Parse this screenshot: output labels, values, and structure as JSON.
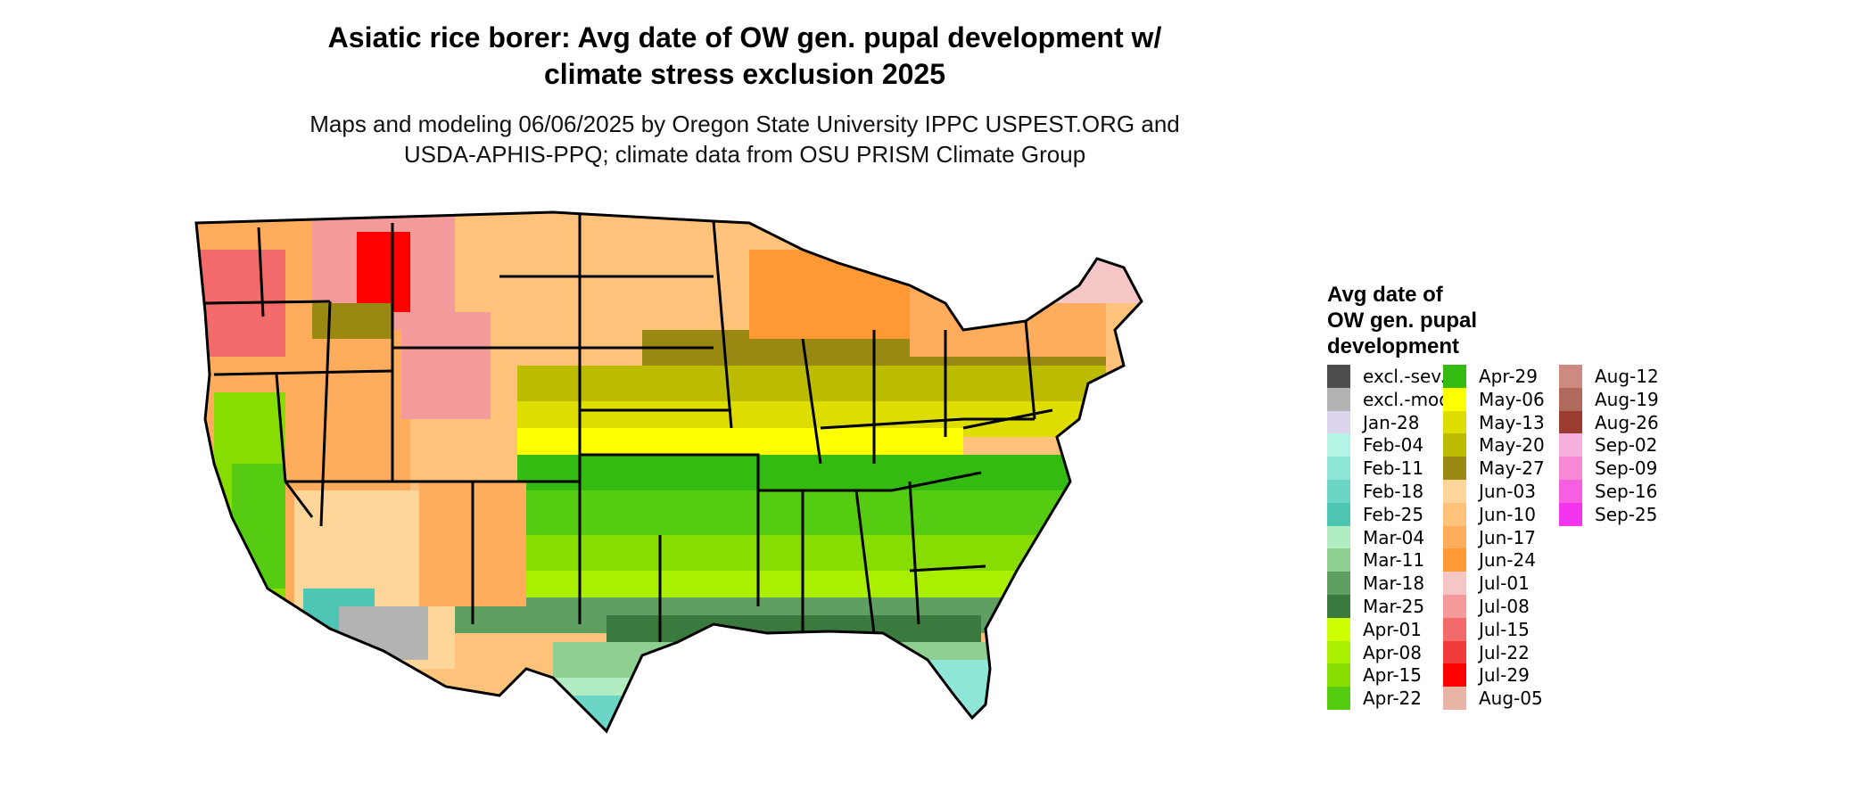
{
  "title_line1": "Asiatic rice borer: Avg date of OW gen. pupal development w/",
  "title_line2": "climate stress exclusion 2025",
  "subtitle_line1": "Maps and modeling 06/06/2025 by Oregon State University IPPC USPEST.ORG and",
  "subtitle_line2": "USDA-APHIS-PPQ; climate data from OSU PRISM Climate Group",
  "legend": {
    "title_lines": [
      "Avg date of",
      "OW gen. pupal",
      "development"
    ],
    "items": [
      {
        "label": "excl.-sev.",
        "color": "#4d4d4d"
      },
      {
        "label": "excl.-mod.",
        "color": "#b3b3b3"
      },
      {
        "label": "Jan-28",
        "color": "#ddd5ee"
      },
      {
        "label": "Feb-04",
        "color": "#b3f4e4"
      },
      {
        "label": "Feb-11",
        "color": "#8fe6d6"
      },
      {
        "label": "Feb-18",
        "color": "#6cd6c6"
      },
      {
        "label": "Feb-25",
        "color": "#4dc7b4"
      },
      {
        "label": "Mar-04",
        "color": "#b1edc0"
      },
      {
        "label": "Mar-11",
        "color": "#8fcf91"
      },
      {
        "label": "Mar-18",
        "color": "#5f9f62"
      },
      {
        "label": "Mar-25",
        "color": "#3b7a3f"
      },
      {
        "label": "Apr-01",
        "color": "#ccff00"
      },
      {
        "label": "Apr-08",
        "color": "#aaee00"
      },
      {
        "label": "Apr-15",
        "color": "#88dd00"
      },
      {
        "label": "Apr-22",
        "color": "#55cc11"
      },
      {
        "label": "Apr-29",
        "color": "#33bb11"
      },
      {
        "label": "May-06",
        "color": "#ffff00"
      },
      {
        "label": "May-13",
        "color": "#dddd00"
      },
      {
        "label": "May-20",
        "color": "#bbbb00"
      },
      {
        "label": "May-27",
        "color": "#998811"
      },
      {
        "label": "Jun-03",
        "color": "#ffd699"
      },
      {
        "label": "Jun-10",
        "color": "#ffc27a"
      },
      {
        "label": "Jun-17",
        "color": "#ffad5c"
      },
      {
        "label": "Jun-24",
        "color": "#ff9933"
      },
      {
        "label": "Jul-01",
        "color": "#f5c6c6"
      },
      {
        "label": "Jul-08",
        "color": "#f59a9a"
      },
      {
        "label": "Jul-15",
        "color": "#f26a6a"
      },
      {
        "label": "Jul-22",
        "color": "#f23c3c"
      },
      {
        "label": "Jul-29",
        "color": "#ff0000"
      },
      {
        "label": "Aug-05",
        "color": "#e8b4a8"
      },
      {
        "label": "Aug-12",
        "color": "#cc8a80"
      },
      {
        "label": "Aug-19",
        "color": "#b06a5c"
      },
      {
        "label": "Aug-26",
        "color": "#9a3c30"
      },
      {
        "label": "Sep-02",
        "color": "#f7b0dd"
      },
      {
        "label": "Sep-09",
        "color": "#f788d6"
      },
      {
        "label": "Sep-16",
        "color": "#f55fe0"
      },
      {
        "label": "Sep-25",
        "color": "#f535ee"
      }
    ]
  }
}
